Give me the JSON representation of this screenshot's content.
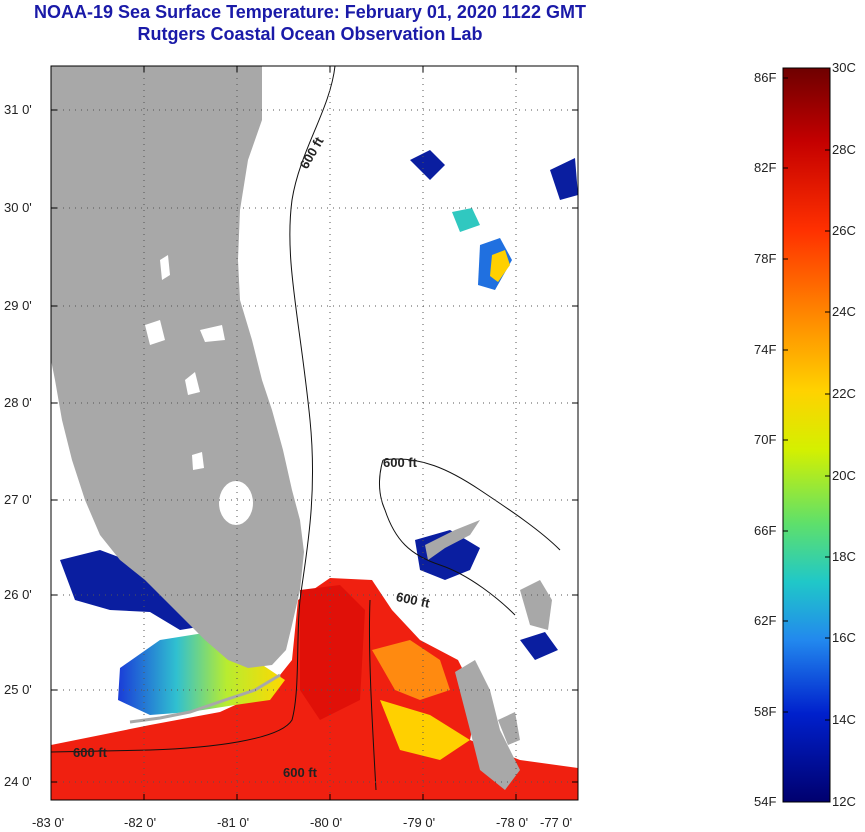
{
  "title": {
    "line1": "NOAA-19 Sea Surface Temperature:  February 01, 2020 1122 GMT",
    "line2": "Rutgers Coastal Ocean Observation Lab"
  },
  "map": {
    "lat_labels": [
      "31 0'",
      "30 0'",
      "29 0'",
      "28 0'",
      "27 0'",
      "26 0'",
      "25 0'",
      "24 0'"
    ],
    "lon_labels": [
      "-83 0'",
      "-82 0'",
      "-81 0'",
      "-80 0'",
      "-79 0'",
      "-78 0'",
      "-77 0'"
    ],
    "isobath_labels": [
      "600 ft",
      "600 ft",
      "600 ft",
      "600 ft",
      "600 ft"
    ],
    "colors": {
      "land": "#a8a8a8",
      "water_nodata": "#ffffff",
      "grid": "#555555"
    }
  },
  "colorbar": {
    "fahrenheit_labels": [
      "86F",
      "82F",
      "78F",
      "74F",
      "70F",
      "66F",
      "62F",
      "58F",
      "54F"
    ],
    "celsius_labels": [
      "30C",
      "28C",
      "26C",
      "24C",
      "22C",
      "20C",
      "18C",
      "16C",
      "14C",
      "12C"
    ],
    "scale_colors": [
      "#7a0000",
      "#cc0000",
      "#ff3300",
      "#ff8800",
      "#ffd000",
      "#d8f000",
      "#66e066",
      "#22c8c8",
      "#2288ee",
      "#0022cc",
      "#00007a"
    ]
  }
}
